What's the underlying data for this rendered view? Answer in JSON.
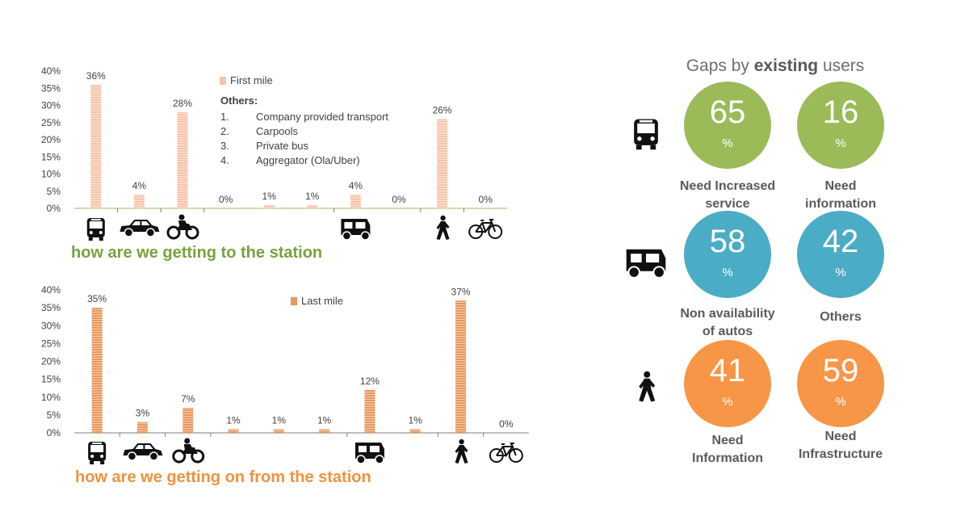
{
  "charts": [
    {
      "id": "top",
      "legend": "First mile",
      "color": "#f6c4a8",
      "caption": "how are we getting to the station",
      "others": {
        "title": "Others:",
        "items": [
          {
            "num": "1.",
            "text": "Company provided transport"
          },
          {
            "num": "2.",
            "text": "Carpools"
          },
          {
            "num": "3.",
            "text": "Private bus"
          },
          {
            "num": "4.",
            "text": "Aggregator (Ola/Uber)"
          }
        ]
      }
    },
    {
      "id": "bottom",
      "legend": "Last mile",
      "color": "#e8975a",
      "caption": "how are we getting on from the station"
    }
  ],
  "chart_data": [
    {
      "type": "bar",
      "series": [
        {
          "name": "First mile",
          "values": [
            36,
            4,
            28,
            0,
            1,
            1,
            4,
            0,
            26,
            0
          ]
        }
      ],
      "labels": [
        "36%",
        "4%",
        "28%",
        "0%",
        "1%",
        "1%",
        "4%",
        "0%",
        "26%",
        "0%"
      ],
      "yticks": [
        "0%",
        "5%",
        "10%",
        "15%",
        "20%",
        "25%",
        "30%",
        "35%",
        "40%"
      ],
      "ylim": [
        0,
        40
      ],
      "grid": false,
      "legend_position": "top-center",
      "categories_icons": [
        "bus-icon",
        "car-icon",
        "motorbike-icon",
        "",
        "",
        "",
        "auto-rickshaw-icon",
        "",
        "walking-icon",
        "bicycle-icon"
      ]
    },
    {
      "type": "bar",
      "series": [
        {
          "name": "Last mile",
          "values": [
            35,
            3,
            7,
            1,
            1,
            1,
            12,
            1,
            37,
            0
          ]
        }
      ],
      "labels": [
        "35%",
        "3%",
        "7%",
        "1%",
        "1%",
        "1%",
        "12%",
        "1%",
        "37%",
        "0%"
      ],
      "yticks": [
        "0%",
        "5%",
        "10%",
        "15%",
        "20%",
        "25%",
        "30%",
        "35%",
        "40%"
      ],
      "ylim": [
        0,
        40
      ],
      "grid": false,
      "legend_position": "top-center",
      "categories_icons": [
        "bus-icon",
        "car-icon",
        "motorbike-icon",
        "",
        "",
        "",
        "auto-rickshaw-icon",
        "",
        "walking-icon",
        "bicycle-icon"
      ]
    }
  ],
  "gaps": {
    "title_prefix": "Gaps by ",
    "title_bold": "existing",
    "title_suffix": " users",
    "colors": {
      "green": "#9bbb59",
      "blue": "#4bacc6",
      "orange": "#f79646"
    },
    "rows": [
      {
        "icon": "bus-icon",
        "items": [
          {
            "value": "65",
            "unit": "%",
            "label1": "Need Increased",
            "label2": "service",
            "color": "green"
          },
          {
            "value": "16",
            "unit": "%",
            "label1": "Need",
            "label2": "information",
            "color": "green"
          }
        ]
      },
      {
        "icon": "auto-rickshaw-icon",
        "items": [
          {
            "value": "58",
            "unit": "%",
            "label1": "Non availability",
            "label2": "of autos",
            "color": "blue"
          },
          {
            "value": "42",
            "unit": "%",
            "label1": "Others",
            "label2": "",
            "color": "blue"
          }
        ]
      },
      {
        "icon": "walking-icon",
        "items": [
          {
            "value": "41",
            "unit": "%",
            "label1": "Need",
            "label2": "Information",
            "color": "orange"
          },
          {
            "value": "59",
            "unit": "%",
            "label1": "Need",
            "label2": "Infrastructure",
            "color": "orange"
          }
        ]
      }
    ]
  }
}
